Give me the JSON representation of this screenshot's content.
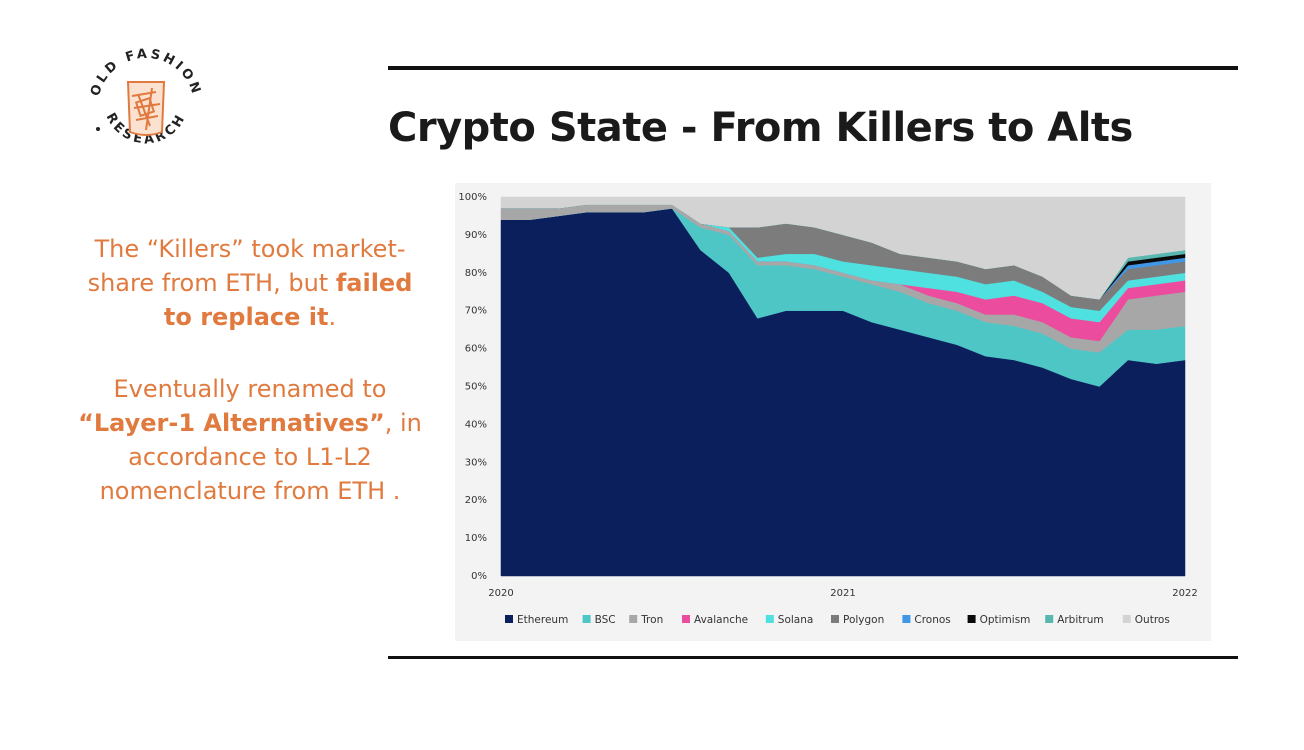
{
  "slide": {
    "title": "Crypto State - From Killers to Alts",
    "logo": {
      "top_text": "OLD FASHION",
      "bottom_text": "RESEARCH",
      "icon": "whiskey-glass-icon"
    },
    "blurb": {
      "p1_a": "The “Killers” took market-share from ETH, but ",
      "p1_b": "failed to replace it",
      "p1_c": ".",
      "p2_a": "Eventually renamed to ",
      "p2_b": "“Layer-1 Alternatives”",
      "p2_c": ", in accordance to L1-L2 nomenclature from ETH ."
    },
    "colors": {
      "accent": "#e07a3f",
      "rule": "#111111"
    }
  },
  "chart_data": {
    "type": "area",
    "stacked": true,
    "normalized": true,
    "title": "",
    "xlabel": "",
    "ylabel": "",
    "x_ticks": [
      "2020",
      "2021",
      "2022"
    ],
    "y_ticks": [
      "0%",
      "10%",
      "20%",
      "30%",
      "40%",
      "50%",
      "60%",
      "70%",
      "80%",
      "90%",
      "100%"
    ],
    "ylim": [
      0,
      100
    ],
    "legend_position": "bottom",
    "x": [
      "2020-01",
      "2020-02",
      "2020-03",
      "2020-04",
      "2020-05",
      "2020-06",
      "2020-07",
      "2020-08",
      "2020-09",
      "2020-10",
      "2020-11",
      "2020-12",
      "2021-01",
      "2021-02",
      "2021-03",
      "2021-04",
      "2021-05",
      "2021-06",
      "2021-07",
      "2021-08",
      "2021-09",
      "2021-10",
      "2021-11",
      "2021-12",
      "2022-01"
    ],
    "series": [
      {
        "name": "Ethereum",
        "color": "#0b1f5c",
        "values": [
          94,
          94,
          95,
          96,
          96,
          96,
          97,
          86,
          80,
          68,
          70,
          70,
          70,
          67,
          65,
          63,
          61,
          58,
          57,
          55,
          52,
          50,
          57,
          56,
          57
        ]
      },
      {
        "name": "BSC",
        "color": "#4ec6c6",
        "values": [
          0,
          0,
          0,
          0,
          0,
          0,
          0,
          6,
          10,
          14,
          12,
          11,
          9,
          10,
          10,
          9,
          9,
          9,
          9,
          9,
          8,
          9,
          8,
          9,
          9
        ]
      },
      {
        "name": "Tron",
        "color": "#a7a7a7",
        "values": [
          3,
          3,
          2,
          2,
          2,
          2,
          1,
          1,
          1,
          1,
          1,
          1,
          1,
          1,
          2,
          2,
          2,
          2,
          3,
          3,
          3,
          3,
          8,
          9,
          9
        ]
      },
      {
        "name": "Avalanche",
        "color": "#ec4c9e",
        "values": [
          0,
          0,
          0,
          0,
          0,
          0,
          0,
          0,
          0,
          0,
          0,
          0,
          0,
          0,
          0,
          2,
          3,
          4,
          5,
          5,
          5,
          5,
          3,
          3,
          3
        ]
      },
      {
        "name": "Solana",
        "color": "#4fe0e0",
        "values": [
          0,
          0,
          0,
          0,
          0,
          0,
          0,
          0,
          1,
          1,
          2,
          3,
          3,
          4,
          4,
          4,
          4,
          4,
          4,
          3,
          3,
          3,
          2,
          2,
          2
        ]
      },
      {
        "name": "Polygon",
        "color": "#7c7c7c",
        "values": [
          0,
          0,
          0,
          0,
          0,
          0,
          0,
          0,
          0,
          8,
          8,
          7,
          7,
          6,
          4,
          4,
          4,
          4,
          4,
          4,
          3,
          3,
          3,
          3,
          3
        ]
      },
      {
        "name": "Cronos",
        "color": "#3f97e6",
        "values": [
          0,
          0,
          0,
          0,
          0,
          0,
          0,
          0,
          0,
          0,
          0,
          0,
          0,
          0,
          0,
          0,
          0,
          0,
          0,
          0,
          0,
          0,
          1,
          1,
          1
        ]
      },
      {
        "name": "Optimism",
        "color": "#0a0a0a",
        "values": [
          0,
          0,
          0,
          0,
          0,
          0,
          0,
          0,
          0,
          0,
          0,
          0,
          0,
          0,
          0,
          0,
          0,
          0,
          0,
          0,
          0,
          0,
          1,
          1,
          1
        ]
      },
      {
        "name": "Arbitrum",
        "color": "#58b8b0",
        "values": [
          0,
          0,
          0,
          0,
          0,
          0,
          0,
          0,
          0,
          0,
          0,
          0,
          0,
          0,
          0,
          0,
          0,
          0,
          0,
          0,
          0,
          0,
          1,
          1,
          1
        ]
      },
      {
        "name": "Outros",
        "color": "#d3d3d3",
        "values": [
          3,
          3,
          3,
          2,
          2,
          2,
          2,
          7,
          8,
          8,
          7,
          8,
          10,
          12,
          15,
          16,
          17,
          19,
          18,
          21,
          26,
          27,
          16,
          15,
          14
        ]
      }
    ]
  }
}
